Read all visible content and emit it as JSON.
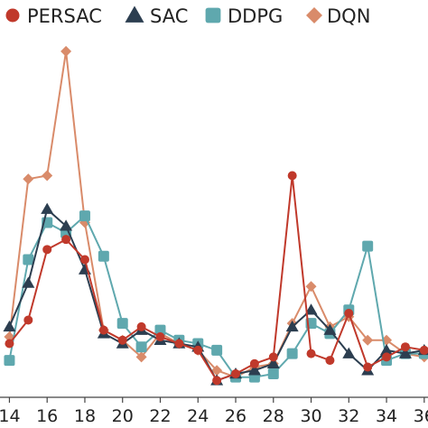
{
  "chart_data": {
    "type": "line",
    "x": [
      14,
      15,
      16,
      17,
      18,
      19,
      20,
      21,
      22,
      23,
      24,
      25,
      26,
      27,
      28,
      29,
      30,
      31,
      32,
      33,
      34,
      35,
      36
    ],
    "x_ticks": [
      "14",
      "16",
      "18",
      "20",
      "22",
      "24",
      "26",
      "28",
      "30",
      "32",
      "34",
      "36"
    ],
    "xlim": [
      13.5,
      36.2
    ],
    "ylim": [
      0,
      100
    ],
    "grid": false,
    "legend_position": "top",
    "series": [
      {
        "name": "PERSAC",
        "color": "#c0392b",
        "marker": "circle",
        "values": [
          16,
          23,
          44,
          47,
          41,
          20,
          17,
          21,
          18,
          16,
          14,
          5,
          7,
          10,
          12,
          66,
          13,
          11,
          25,
          9,
          12,
          15,
          14
        ]
      },
      {
        "name": "SAC",
        "color": "#2c3e50",
        "marker": "triangle",
        "values": [
          21,
          34,
          56,
          51,
          38,
          19,
          16,
          20,
          17,
          16,
          15,
          5,
          7,
          8,
          10,
          21,
          26,
          20,
          13,
          8,
          14,
          13,
          14
        ]
      },
      {
        "name": "DDPG",
        "color": "#5fa8ae",
        "marker": "square",
        "values": [
          11,
          41,
          52,
          49,
          54,
          42,
          22,
          15,
          20,
          17,
          16,
          14,
          6,
          6,
          7,
          13,
          22,
          19,
          26,
          45,
          11,
          13,
          13
        ]
      },
      {
        "name": "DQN",
        "color": "#d98b6a",
        "marker": "diamond",
        "values": [
          18,
          65,
          66,
          103,
          52,
          20,
          17,
          12,
          19,
          16,
          14,
          8,
          6,
          9,
          10,
          22,
          33,
          21,
          24,
          17,
          17,
          13,
          12
        ]
      }
    ]
  }
}
